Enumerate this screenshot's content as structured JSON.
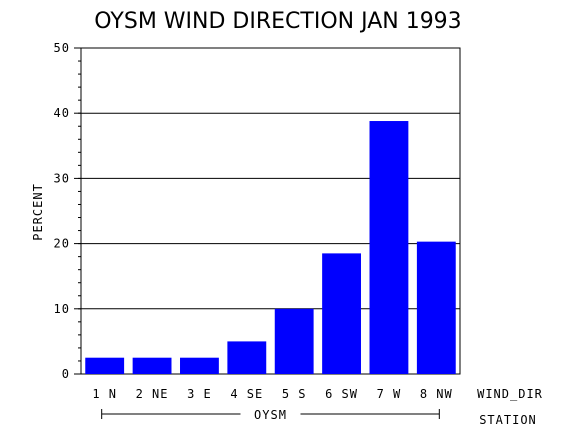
{
  "chart_data": {
    "type": "bar",
    "title": "OYSM WIND DIRECTION JAN 1993",
    "ylabel": "PERCENT",
    "xlabel": "WIND_DIR",
    "group_axis_label": "STATION",
    "group_name": "OYSM",
    "ylim": [
      0,
      50
    ],
    "yticks": [
      "0",
      "10",
      "20",
      "30",
      "40",
      "50"
    ],
    "categories": [
      "1 N",
      "2 NE",
      "3 E",
      "4 SE",
      "5 S",
      "6 SW",
      "7 W",
      "8 NW"
    ],
    "values": [
      2.5,
      2.5,
      2.5,
      5.0,
      10.0,
      18.5,
      38.8,
      20.3
    ],
    "bar_color": "#0000ff",
    "grid": true
  }
}
